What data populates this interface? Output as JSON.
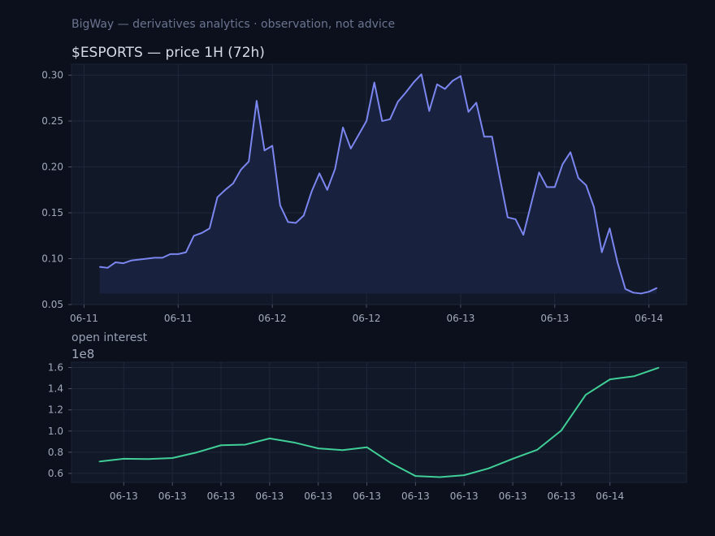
{
  "header": {
    "subtitle": "BigWay — derivatives analytics · observation, not advice"
  },
  "colors": {
    "price_line": "#7b86f0",
    "price_fill": "#18213d",
    "oi_line": "#3fcf97"
  },
  "chart_data": [
    {
      "type": "area",
      "title": "$ESPORTS — price 1H (72h)",
      "x": [
        0,
        1,
        2,
        3,
        4,
        5,
        6,
        7,
        8,
        9,
        10,
        11,
        12,
        13,
        14,
        15,
        16,
        17,
        18,
        19,
        20,
        21,
        22,
        23,
        24,
        25,
        26,
        27,
        28,
        29,
        30,
        31,
        32,
        33,
        34,
        35,
        36,
        37,
        38,
        39,
        40,
        41,
        42,
        43,
        44,
        45,
        46,
        47,
        48,
        49,
        50,
        51,
        52,
        53,
        54,
        55,
        56,
        57,
        58,
        59,
        60,
        61,
        62,
        63,
        64,
        65,
        66,
        67,
        68,
        69,
        70,
        71
      ],
      "series": [
        {
          "values": [
            0.091,
            0.09,
            0.096,
            0.095,
            0.098,
            0.099,
            0.1,
            0.101,
            0.101,
            0.105,
            0.105,
            0.107,
            0.125,
            0.128,
            0.133,
            0.167,
            0.175,
            0.182,
            0.197,
            0.206,
            0.272,
            0.218,
            0.223,
            0.158,
            0.14,
            0.139,
            0.147,
            0.173,
            0.193,
            0.175,
            0.198,
            0.243,
            0.22,
            0.235,
            0.25,
            0.292,
            0.25,
            0.252,
            0.271,
            0.281,
            0.292,
            0.301,
            0.261,
            0.29,
            0.285,
            0.294,
            0.299,
            0.26,
            0.27,
            0.233,
            0.233,
            0.188,
            0.145,
            0.143,
            0.126,
            0.16,
            0.194,
            0.178,
            0.178,
            0.203,
            0.216,
            0.188,
            0.18,
            0.156,
            0.107,
            0.133,
            0.096,
            0.067,
            0.063,
            0.062,
            0.064,
            0.068
          ]
        }
      ],
      "x_tick_positions": [
        -2,
        10,
        22,
        34,
        46,
        58,
        70
      ],
      "x_tick_labels": [
        "06-11",
        "06-11",
        "06-12",
        "06-12",
        "06-13",
        "06-13",
        "06-14"
      ],
      "y_ticks": [
        0.05,
        0.1,
        0.15,
        0.2,
        0.25,
        0.3
      ],
      "y_tick_labels": [
        "0.05",
        "0.10",
        "0.15",
        "0.20",
        "0.25",
        "0.30"
      ],
      "xlim": [
        -3.6,
        74.8
      ],
      "ylim": [
        0.05,
        0.312
      ],
      "fill_base": 0.062,
      "grid": true
    },
    {
      "type": "line",
      "title": "open interest",
      "y_scale_label": "1e8",
      "x": [
        0,
        1,
        2,
        3,
        4,
        5,
        6,
        7,
        8,
        9,
        10,
        11,
        12,
        13,
        14,
        15,
        16,
        17,
        18,
        19,
        20,
        21,
        22,
        23
      ],
      "series": [
        {
          "values": [
            0.712,
            0.738,
            0.735,
            0.745,
            0.798,
            0.866,
            0.872,
            0.93,
            0.892,
            0.836,
            0.82,
            0.847,
            0.696,
            0.575,
            0.565,
            0.583,
            0.647,
            0.738,
            0.822,
            1.006,
            1.342,
            1.488,
            1.518,
            1.598
          ]
        }
      ],
      "x_tick_positions": [
        1,
        3,
        5,
        7,
        9,
        11,
        13,
        15,
        17,
        19,
        21
      ],
      "x_tick_labels": [
        "06-13",
        "06-13",
        "06-13",
        "06-13",
        "06-13",
        "06-13",
        "06-13",
        "06-13",
        "06-13",
        "06-13",
        "06-14"
      ],
      "y_ticks": [
        0.6,
        0.8,
        1.0,
        1.2,
        1.4,
        1.6
      ],
      "y_tick_labels": [
        "0.6",
        "0.8",
        "1.0",
        "1.2",
        "1.4",
        "1.6"
      ],
      "xlim": [
        -1.15,
        24.15
      ],
      "ylim": [
        0.515,
        1.65
      ],
      "grid": true
    }
  ]
}
